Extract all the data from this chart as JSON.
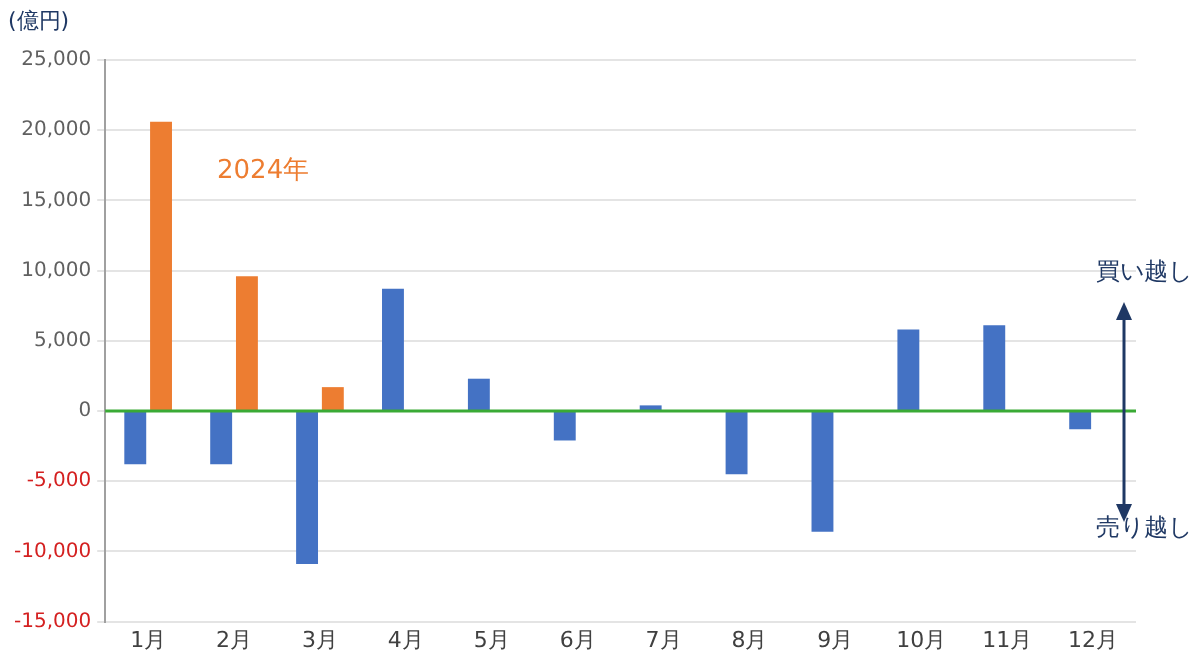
{
  "chart_data": {
    "type": "bar",
    "ylabel": "(億円)",
    "categories": [
      "1月",
      "2月",
      "3月",
      "4月",
      "5月",
      "6月",
      "7月",
      "8月",
      "9月",
      "10月",
      "11月",
      "12月"
    ],
    "series": [
      {
        "color": "#4472c4",
        "values": [
          -3800,
          -3800,
          -10900,
          8700,
          2300,
          -2100,
          400,
          -4500,
          -8600,
          5800,
          6100,
          -1300
        ]
      },
      {
        "name": "2024年",
        "color": "#ed7d31",
        "values": [
          20600,
          9600,
          1700,
          null,
          null,
          null,
          null,
          null,
          null,
          null,
          null,
          null
        ]
      }
    ],
    "ylim": [
      -15000,
      25000
    ],
    "yticks": [
      {
        "value": -15000,
        "label": "-15,000"
      },
      {
        "value": -10000,
        "label": "-10,000"
      },
      {
        "value": -5000,
        "label": "-5,000"
      },
      0,
      {
        "value": 5000,
        "label": "5,000"
      },
      {
        "value": 10000,
        "label": "10,000"
      },
      {
        "value": 15000,
        "label": "15,000"
      },
      {
        "value": 20000,
        "label": "20,000"
      },
      {
        "value": 25000,
        "label": "25,000"
      }
    ],
    "ref_lines": [
      {
        "axis": "y",
        "value": 0,
        "color": "#3aaa35"
      }
    ],
    "annotations": [
      "買い越し",
      "売り越し"
    ],
    "grid": "y",
    "legend": false
  }
}
